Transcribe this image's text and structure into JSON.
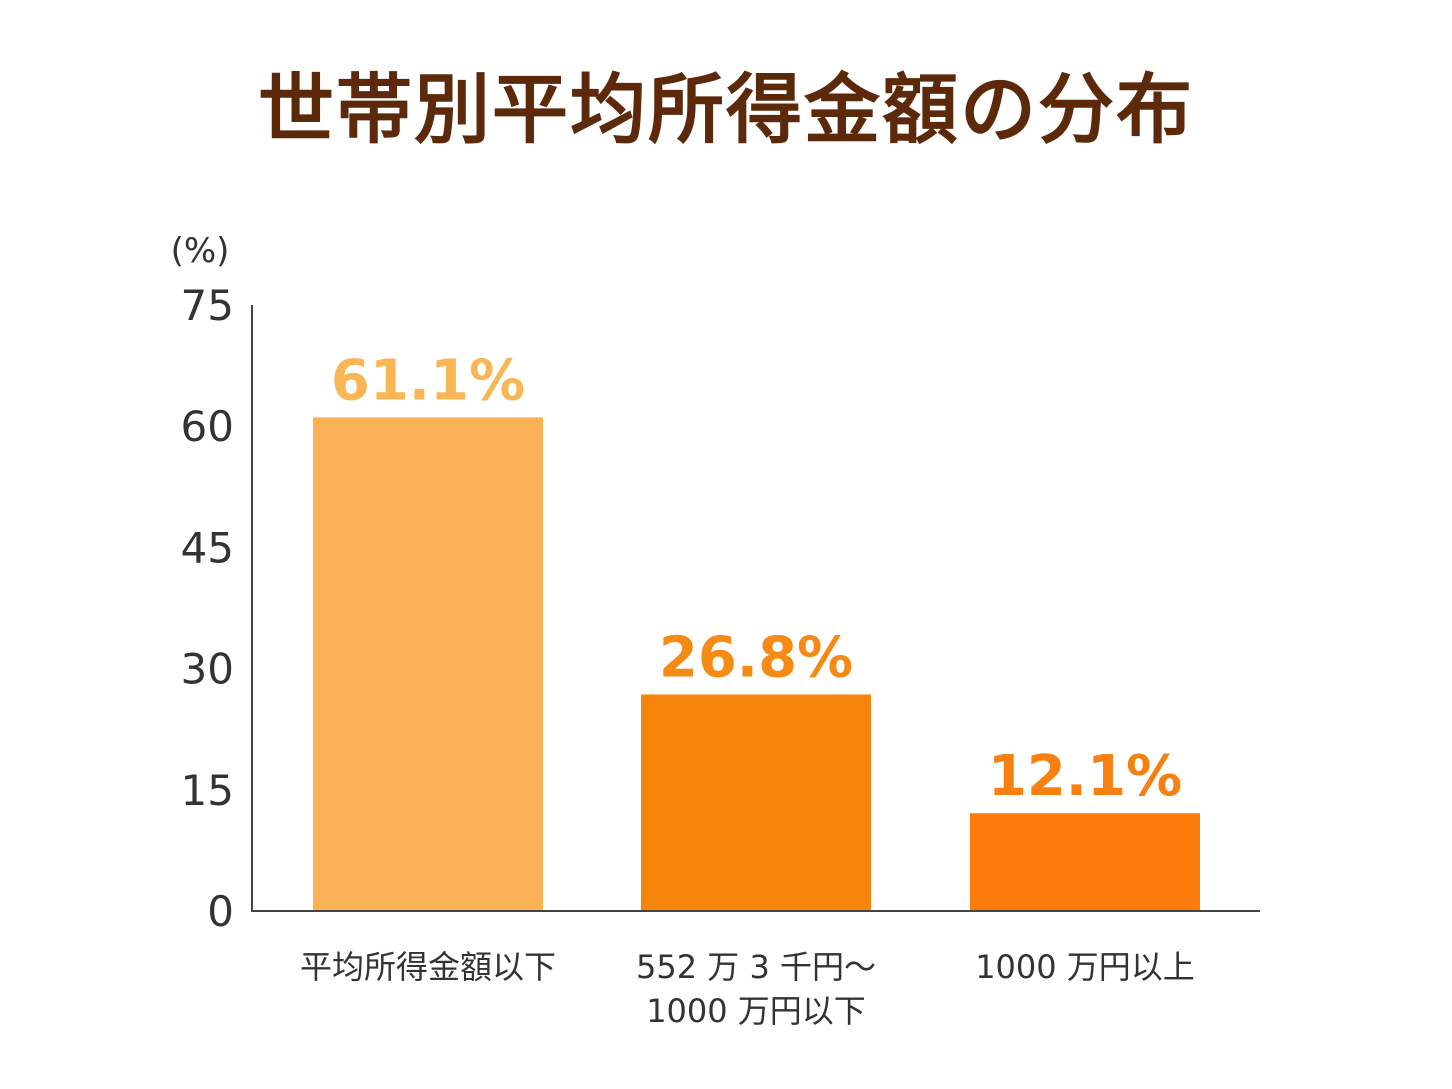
{
  "chart_data": {
    "type": "bar",
    "title": "世帯別平均所得金額の分布",
    "ylabel": "(%)",
    "ylim": [
      0,
      75
    ],
    "yticks": [
      "75",
      "60",
      "45",
      "30",
      "15",
      "0"
    ],
    "ytick_values": [
      75,
      60,
      45,
      30,
      15,
      0
    ],
    "categories": [
      [
        "平均所得金額以下"
      ],
      [
        "552 万 3 千円〜",
        "1000 万円以下"
      ],
      [
        "1000 万円以上"
      ]
    ],
    "values": [
      61.1,
      26.8,
      12.1
    ],
    "data_labels": [
      "61.1%",
      "26.8%",
      "12.1%"
    ],
    "colors": [
      "#fbb254",
      "#f7850c",
      "#fb7b0b"
    ],
    "label_colors": [
      "#f8b655",
      "#f58a14",
      "#f78010"
    ],
    "grid": false,
    "legend": "none"
  }
}
